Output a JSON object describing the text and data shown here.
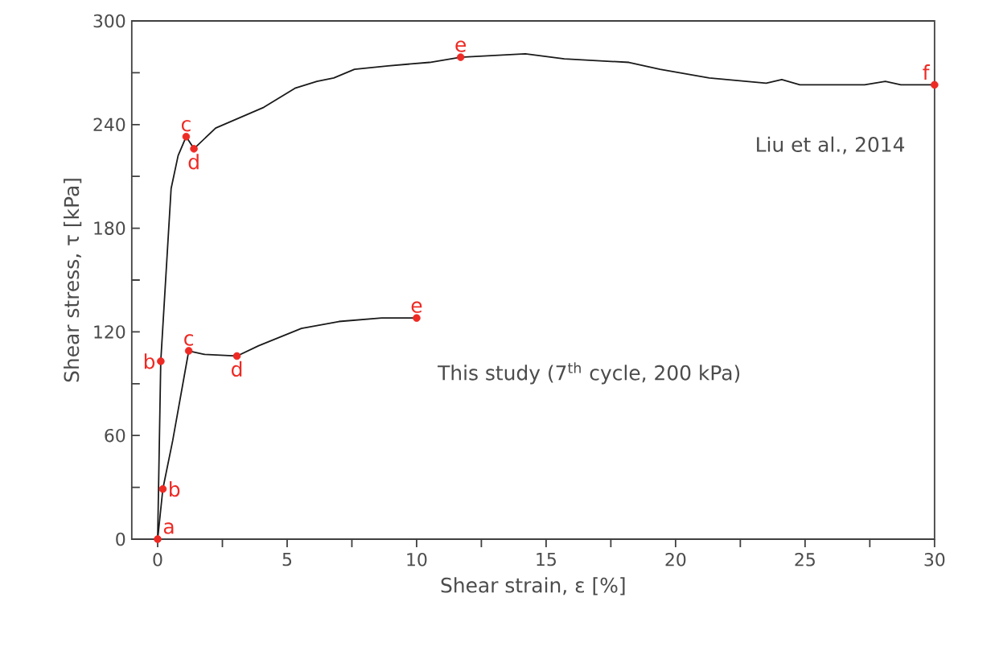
{
  "chart_data": {
    "type": "line",
    "xlabel": "Shear strain, ε [%]",
    "ylabel": "Shear stress, τ [kPa]",
    "xlim": [
      -1,
      30
    ],
    "ylim": [
      0,
      300
    ],
    "xticks": [
      0,
      {
        "value": 2.5,
        "label": null
      },
      5,
      {
        "value": 7.5,
        "label": null
      },
      10,
      {
        "value": 12.5,
        "label": null
      },
      15,
      {
        "value": 17.5,
        "label": null
      },
      20,
      {
        "value": 22.5,
        "label": null
      },
      25,
      {
        "value": 27.5,
        "label": null
      },
      30
    ],
    "yticks": [
      0,
      {
        "value": 30,
        "label": null
      },
      60,
      {
        "value": 90,
        "label": null
      },
      120,
      {
        "value": 150,
        "label": null
      },
      180,
      {
        "value": 210,
        "label": null
      },
      240,
      {
        "value": 270,
        "label": null
      },
      300
    ],
    "grid": false,
    "series": [
      {
        "name": "Liu et al., 2014",
        "color": "#1a1a1a",
        "marker": "none",
        "x": [
          0,
          0.12,
          0.52,
          0.79,
          1.1,
          1.4,
          2.24,
          4.1,
          5.3,
          6.15,
          6.8,
          7.6,
          8.9,
          10.5,
          11.7,
          14.2,
          15.7,
          18.2,
          19.4,
          21.3,
          23.5,
          24.1,
          24.8,
          27.3,
          28.1,
          28.7,
          30
        ],
        "values": [
          0,
          103,
          203,
          222,
          233,
          226,
          238,
          250,
          261,
          265,
          267,
          272,
          274,
          276,
          279,
          281,
          278,
          276,
          272,
          267,
          264,
          266,
          263,
          263,
          265,
          263,
          263
        ]
      },
      {
        "name": "This study (7$^{th}$ cycle, 200 kPa)",
        "color": "#1a1a1a",
        "marker": "none",
        "x": [
          0,
          0.2,
          0.58,
          1.2,
          1.8,
          3.06,
          3.9,
          5.55,
          7.0,
          8.65,
          10
        ],
        "values": [
          0,
          29,
          57,
          109,
          107,
          106,
          112,
          122,
          126,
          128,
          128
        ]
      },
      {
        "type": "scatter",
        "color": "#ee2a24",
        "marker": "circle",
        "x": [
          0,
          0.2,
          1.2,
          3.06,
          10,
          0.12,
          1.1,
          1.4,
          11.7,
          30
        ],
        "values": [
          0,
          29,
          109,
          106,
          128,
          103,
          233,
          226,
          279,
          263
        ],
        "value_labels": [
          "a",
          "b",
          "c",
          "d",
          "e",
          "b",
          "c",
          "d",
          "e",
          "f"
        ]
      }
    ]
  }
}
